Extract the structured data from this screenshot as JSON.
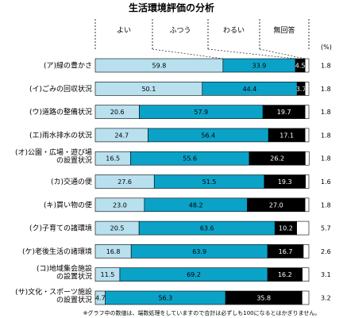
{
  "chart_data": {
    "type": "bar",
    "orientation": "horizontal",
    "stacked": true,
    "title": "生活環境評価の分析",
    "unit": "(%)",
    "xlim": [
      0,
      100
    ],
    "legend_position": "top",
    "series": [
      {
        "name": "よい",
        "color": "#b8e0ee",
        "text_color": "#000000",
        "values": [
          59.8,
          50.1,
          20.6,
          24.7,
          16.5,
          27.6,
          23.0,
          20.5,
          16.8,
          11.5,
          4.7
        ]
      },
      {
        "name": "ふつう",
        "color": "#0ba2c8",
        "text_color": "#000000",
        "values": [
          33.9,
          44.4,
          57.9,
          56.4,
          55.6,
          51.5,
          48.2,
          63.6,
          63.9,
          69.2,
          56.3
        ]
      },
      {
        "name": "わるい",
        "color": "#000000",
        "text_color": "#ffffff",
        "values": [
          4.5,
          3.7,
          19.7,
          17.1,
          26.2,
          19.3,
          27.0,
          10.2,
          16.7,
          16.2,
          35.8
        ]
      },
      {
        "name": "無回答",
        "color": "#ffffff",
        "text_color": "#000000",
        "values": [
          1.8,
          1.8,
          1.8,
          1.8,
          1.8,
          1.6,
          1.8,
          5.7,
          2.6,
          3.1,
          3.2
        ]
      }
    ],
    "categories": [
      [
        "(ア)緑の豊かさ"
      ],
      [
        "(イ)ごみの回収状況"
      ],
      [
        "(ウ)道路の整備状況"
      ],
      [
        "(エ)雨水排水の状況"
      ],
      [
        "(オ)公園・広場・遊び場",
        "の設置状況"
      ],
      [
        "(カ)交通の便"
      ],
      [
        "(キ)買い物の便"
      ],
      [
        "(ク)子育ての諸環境"
      ],
      [
        "(ケ)老後生活の諸環境"
      ],
      [
        "(コ)地域集会施設",
        "の設置状況"
      ],
      [
        "(サ)文化・スポーツ施設",
        "の設置状況"
      ]
    ],
    "footnote": "※グラフ中の数値は、端数処理をしていますので合計は必ずしも100になるとはかぎりません。"
  }
}
